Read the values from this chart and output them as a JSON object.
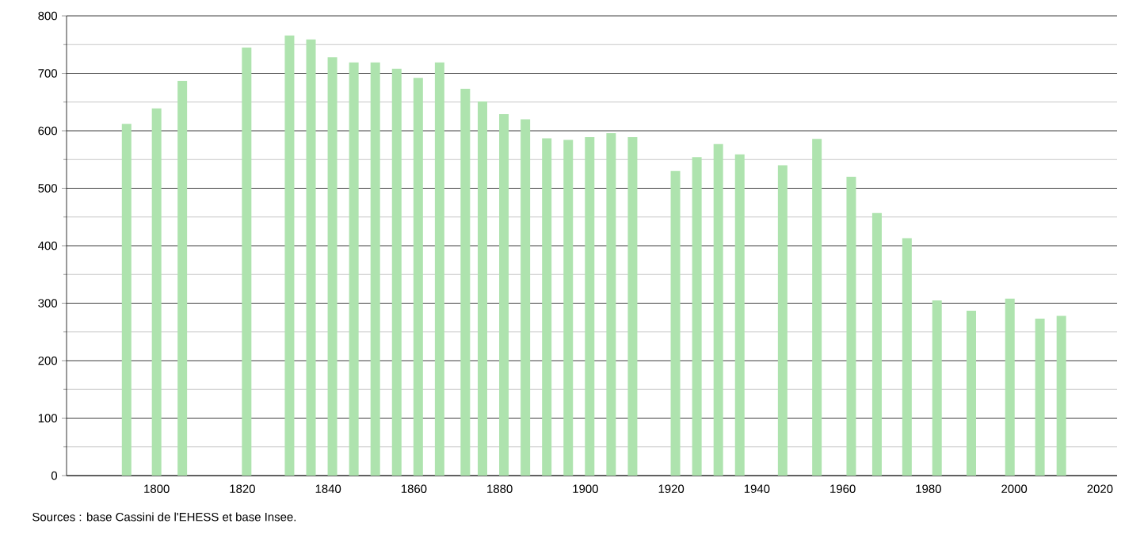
{
  "chart_data": {
    "type": "bar",
    "color": "#aee3ae",
    "x": [
      1793,
      1800,
      1806,
      1821,
      1831,
      1836,
      1841,
      1846,
      1851,
      1856,
      1861,
      1866,
      1872,
      1876,
      1881,
      1886,
      1891,
      1896,
      1901,
      1906,
      1911,
      1921,
      1926,
      1931,
      1936,
      1946,
      1954,
      1962,
      1968,
      1975,
      1982,
      1990,
      1999,
      2006,
      2011
    ],
    "values": [
      612,
      639,
      687,
      745,
      766,
      759,
      728,
      719,
      719,
      708,
      692,
      719,
      673,
      651,
      629,
      620,
      587,
      584,
      589,
      596,
      589,
      530,
      554,
      577,
      559,
      540,
      586,
      520,
      457,
      413,
      305,
      287,
      308,
      273,
      278
    ],
    "xlim": [
      1779,
      2024
    ],
    "xticks": [
      1800,
      1820,
      1840,
      1860,
      1880,
      1900,
      1920,
      1940,
      1960,
      1980,
      2000,
      2020
    ],
    "ylim": [
      0,
      800
    ],
    "yticks": [
      0,
      {
        "value": 50,
        "label": null
      },
      100,
      {
        "value": 150,
        "label": null
      },
      200,
      {
        "value": 250,
        "label": null
      },
      300,
      {
        "value": 350,
        "label": null
      },
      400,
      {
        "value": 450,
        "label": null
      },
      500,
      {
        "value": 550,
        "label": null
      },
      600,
      {
        "value": 650,
        "label": null
      },
      700,
      {
        "value": 750,
        "label": null
      },
      800
    ],
    "grid": "y",
    "annotations": [
      "Sources : base Cassini de l'EHESS et base Insee."
    ]
  }
}
